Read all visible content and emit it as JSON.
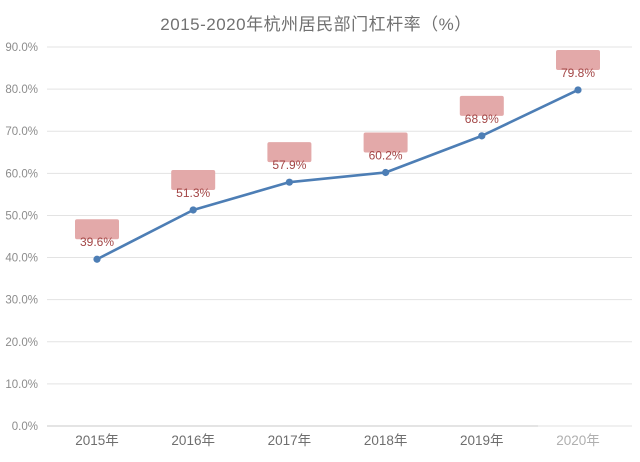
{
  "chart_data": {
    "type": "line",
    "title": "2015-2020年杭州居民部门杠杆率（%）",
    "categories": [
      "2015年",
      "2016年",
      "2017年",
      "2018年",
      "2019年",
      "2020年"
    ],
    "values": [
      39.6,
      51.3,
      57.9,
      60.2,
      68.9,
      79.8
    ],
    "point_labels": [
      "39.6%",
      "51.3%",
      "57.9%",
      "60.2%",
      "68.9%",
      "79.8%"
    ],
    "ytick_labels": [
      "0.0%",
      "10.0%",
      "20.0%",
      "30.0%",
      "40.0%",
      "50.0%",
      "60.0%",
      "70.0%",
      "80.0%",
      "90.0%"
    ],
    "yticks": [
      0,
      10,
      20,
      30,
      40,
      50,
      60,
      70,
      80,
      90
    ],
    "ylim": [
      0,
      90
    ],
    "xlabel": "",
    "ylabel": "",
    "grid": "horizontal",
    "legend": "none",
    "colors": {
      "line": "#4d7eb5",
      "marker": "#4d7eb5",
      "label_box_bg": "#e3a9a9",
      "label_box_text": "#a34646",
      "gridline": "#e3e3e3",
      "axis_line": "#c9c9c9",
      "title_text": "#717171",
      "ytick_text": "#8c8c8c",
      "xtick_text": "#6e6e6e",
      "background": "#ffffff"
    }
  }
}
